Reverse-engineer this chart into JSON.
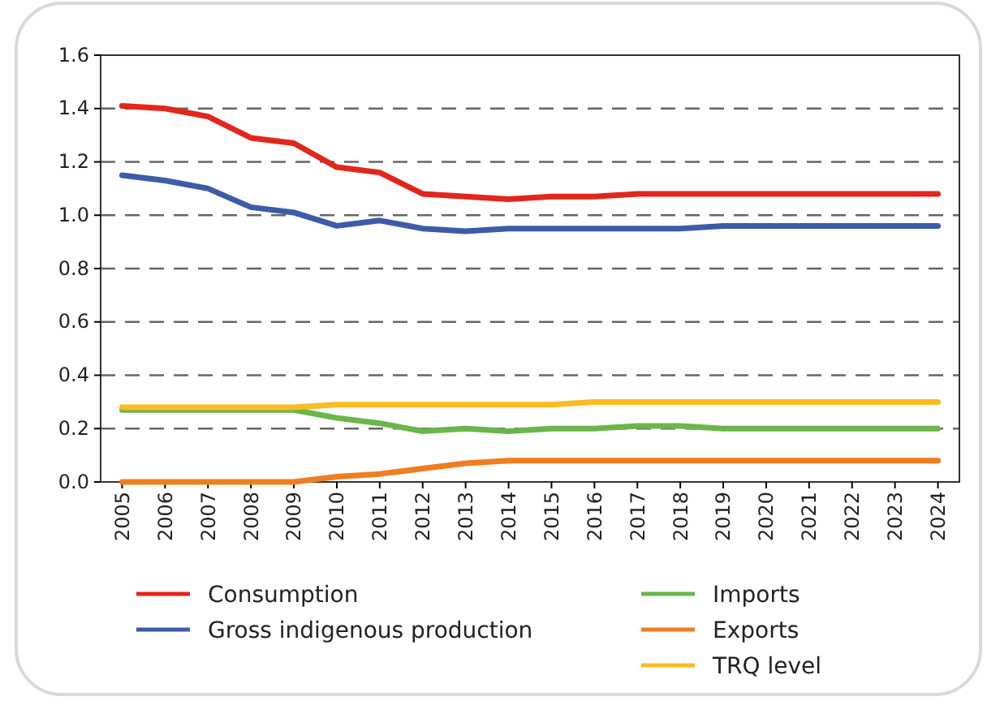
{
  "chart_data": {
    "type": "line",
    "categories": [
      "2005",
      "2006",
      "2007",
      "2008",
      "2009",
      "2010",
      "2011",
      "2012",
      "2013",
      "2014",
      "2015",
      "2016",
      "2017",
      "2018",
      "2019",
      "2020",
      "2021",
      "2022",
      "2023",
      "2024"
    ],
    "series": [
      {
        "name": "Consumption",
        "color": "#e3261b",
        "values": [
          1.41,
          1.4,
          1.37,
          1.29,
          1.27,
          1.18,
          1.16,
          1.08,
          1.07,
          1.06,
          1.07,
          1.07,
          1.08,
          1.08,
          1.08,
          1.08,
          1.08,
          1.08,
          1.08,
          1.08
        ]
      },
      {
        "name": "Gross indigenous production",
        "color": "#3d5ba8",
        "values": [
          1.15,
          1.13,
          1.1,
          1.03,
          1.01,
          0.96,
          0.98,
          0.95,
          0.94,
          0.95,
          0.95,
          0.95,
          0.95,
          0.95,
          0.96,
          0.96,
          0.96,
          0.96,
          0.96,
          0.96
        ]
      },
      {
        "name": "Imports",
        "color": "#6ab64a",
        "values": [
          0.27,
          0.27,
          0.27,
          0.27,
          0.27,
          0.24,
          0.22,
          0.19,
          0.2,
          0.19,
          0.2,
          0.2,
          0.21,
          0.21,
          0.2,
          0.2,
          0.2,
          0.2,
          0.2,
          0.2
        ]
      },
      {
        "name": "Exports",
        "color": "#f07d1f",
        "values": [
          0.0,
          0.0,
          0.0,
          0.0,
          0.0,
          0.02,
          0.03,
          0.05,
          0.07,
          0.08,
          0.08,
          0.08,
          0.08,
          0.08,
          0.08,
          0.08,
          0.08,
          0.08,
          0.08,
          0.08
        ]
      },
      {
        "name": "TRQ level",
        "color": "#fbbb21",
        "values": [
          0.28,
          0.28,
          0.28,
          0.28,
          0.28,
          0.29,
          0.29,
          0.29,
          0.29,
          0.29,
          0.29,
          0.3,
          0.3,
          0.3,
          0.3,
          0.3,
          0.3,
          0.3,
          0.3,
          0.3
        ]
      }
    ],
    "ylim": [
      0,
      1.6
    ],
    "yticks": [
      {
        "value": 0,
        "label": "0.0"
      },
      {
        "value": 0.2,
        "label": "0.2"
      },
      {
        "value": 0.4,
        "label": "0.4"
      },
      {
        "value": 0.6,
        "label": "0.6"
      },
      {
        "value": 0.8,
        "label": "0.8"
      },
      {
        "value": 1,
        "label": "1.0"
      },
      {
        "value": 1.2,
        "label": "1.2"
      },
      {
        "value": 1.4,
        "label": "1.4"
      },
      {
        "value": 1.6,
        "label": "1.6"
      }
    ],
    "grid": "y",
    "legend": "bottom",
    "marker": "none",
    "line_style": "solid"
  }
}
